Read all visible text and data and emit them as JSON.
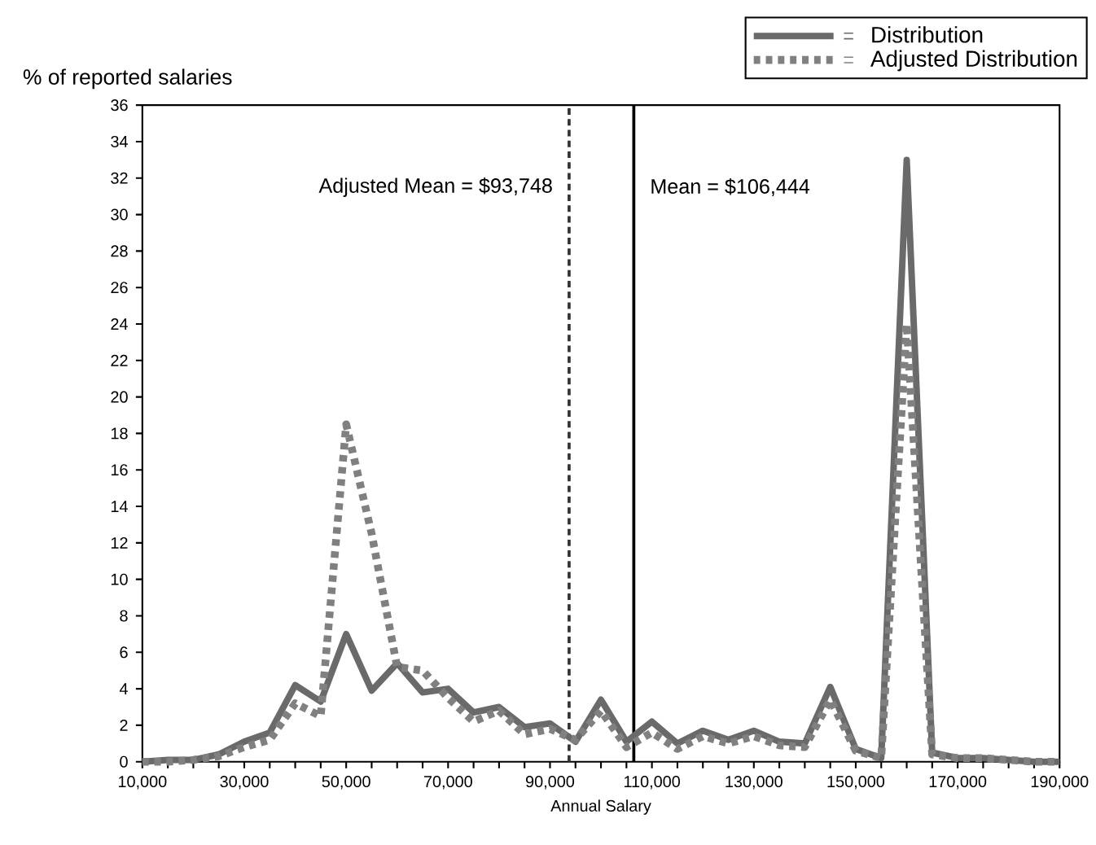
{
  "chart_data": {
    "type": "line",
    "xlabel": "Annual Salary",
    "ylabel": "% of reported salaries",
    "x": [
      10000,
      15000,
      20000,
      25000,
      30000,
      35000,
      40000,
      45000,
      50000,
      55000,
      60000,
      65000,
      70000,
      75000,
      80000,
      85000,
      90000,
      95000,
      100000,
      105000,
      110000,
      115000,
      120000,
      125000,
      130000,
      135000,
      140000,
      145000,
      150000,
      155000,
      160000,
      165000,
      170000,
      175000,
      180000,
      185000,
      190000
    ],
    "series": [
      {
        "name": "Distribution",
        "color": "#6a6a6a",
        "line_style": "solid",
        "values": [
          0,
          0.1,
          0.1,
          0.4,
          1.1,
          1.6,
          4.2,
          3.3,
          7.0,
          3.9,
          5.4,
          3.8,
          4.0,
          2.7,
          3.0,
          1.9,
          2.1,
          1.1,
          3.4,
          1.1,
          2.2,
          1.0,
          1.7,
          1.2,
          1.7,
          1.1,
          1.0,
          4.1,
          0.7,
          0.2,
          33,
          0.5,
          0.2,
          0.2,
          0.1,
          0,
          0
        ]
      },
      {
        "name": "Adjusted Distribution",
        "color": "#808080",
        "line_style": "dotted",
        "values": [
          0,
          0,
          0.1,
          0.3,
          0.8,
          1.2,
          3.2,
          2.5,
          18.5,
          12.5,
          5.2,
          5.0,
          3.5,
          2.2,
          2.8,
          1.5,
          1.8,
          1.2,
          2.8,
          0.8,
          1.6,
          0.7,
          1.4,
          1.0,
          1.4,
          0.9,
          0.8,
          3.4,
          0.6,
          0.2,
          24,
          0.4,
          0.2,
          0.2,
          0.1,
          0,
          0
        ]
      }
    ],
    "xlim": [
      10000,
      190000
    ],
    "xticks": [
      {
        "value": 10000,
        "label": "10,000"
      },
      {
        "value": 15000,
        "label": null
      },
      {
        "value": 20000,
        "label": null
      },
      {
        "value": 25000,
        "label": null
      },
      {
        "value": 30000,
        "label": "30,000"
      },
      {
        "value": 35000,
        "label": null
      },
      {
        "value": 40000,
        "label": null
      },
      {
        "value": 45000,
        "label": null
      },
      {
        "value": 50000,
        "label": "50,000"
      },
      {
        "value": 55000,
        "label": null
      },
      {
        "value": 60000,
        "label": null
      },
      {
        "value": 65000,
        "label": null
      },
      {
        "value": 70000,
        "label": "70,000"
      },
      {
        "value": 75000,
        "label": null
      },
      {
        "value": 80000,
        "label": null
      },
      {
        "value": 85000,
        "label": null
      },
      {
        "value": 90000,
        "label": "90,000"
      },
      {
        "value": 95000,
        "label": null
      },
      {
        "value": 100000,
        "label": null
      },
      {
        "value": 105000,
        "label": null
      },
      {
        "value": 110000,
        "label": "110,000"
      },
      {
        "value": 115000,
        "label": null
      },
      {
        "value": 120000,
        "label": null
      },
      {
        "value": 125000,
        "label": null
      },
      {
        "value": 130000,
        "label": "130,000"
      },
      {
        "value": 135000,
        "label": null
      },
      {
        "value": 140000,
        "label": null
      },
      {
        "value": 145000,
        "label": null
      },
      {
        "value": 150000,
        "label": "150,000"
      },
      {
        "value": 155000,
        "label": null
      },
      {
        "value": 160000,
        "label": null
      },
      {
        "value": 165000,
        "label": null
      },
      {
        "value": 170000,
        "label": "170,000"
      },
      {
        "value": 175000,
        "label": null
      },
      {
        "value": 180000,
        "label": null
      },
      {
        "value": 185000,
        "label": null
      },
      {
        "value": 190000,
        "label": "190,000"
      }
    ],
    "ylim": [
      0,
      36
    ],
    "yticks": [
      0,
      2,
      4,
      6,
      8,
      10,
      12,
      14,
      16,
      18,
      20,
      22,
      24,
      26,
      28,
      30,
      32,
      34,
      36
    ],
    "ref_lines": [
      {
        "axis": "x",
        "value": 93748,
        "label": "Adjusted Mean = $93,748",
        "color": "#333333",
        "line_style": "dashed"
      },
      {
        "axis": "x",
        "value": 106444,
        "label": "Mean = $106,444",
        "color": "#000000",
        "line_style": "solid"
      }
    ],
    "grid": false,
    "legend": "top right",
    "marker": "none"
  }
}
